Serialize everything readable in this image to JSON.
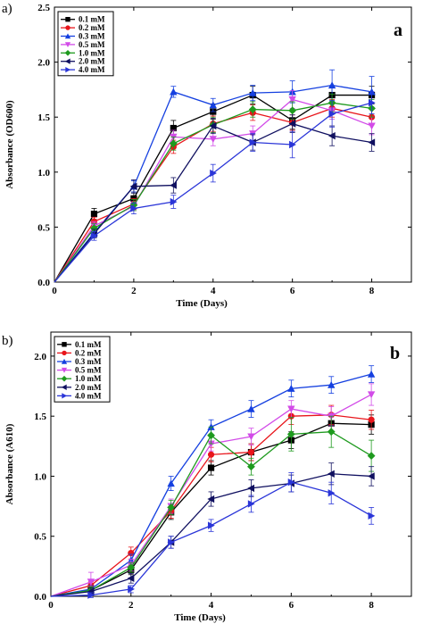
{
  "chart_data": [
    {
      "type": "line",
      "figure_label": "a)",
      "panel_letter": "a",
      "xlabel": "Time (Days)",
      "ylabel": "Absorbance (OD600)",
      "xlim": [
        0,
        9
      ],
      "ylim": [
        0,
        2.5
      ],
      "x_ticks": [
        "0",
        "2",
        "4",
        "6",
        "8"
      ],
      "y_ticks": [
        "0.0",
        "0.5",
        "1.0",
        "1.5",
        "2.0",
        "2.5"
      ],
      "legend_position": "top-left",
      "x": [
        0,
        1,
        2,
        3,
        4,
        5,
        6,
        7,
        8
      ],
      "series": [
        {
          "name": "0.1 mM",
          "color": "#000000",
          "marker": "square",
          "values": [
            0,
            0.62,
            0.76,
            1.4,
            1.55,
            1.7,
            1.47,
            1.7,
            1.7
          ],
          "errors": [
            0,
            0.05,
            0.05,
            0.07,
            0.07,
            0.08,
            0.08,
            0.08,
            0.08
          ]
        },
        {
          "name": "0.2 mM",
          "color": "#e8151b",
          "marker": "circle",
          "values": [
            0,
            0.55,
            0.71,
            1.23,
            1.44,
            1.54,
            1.45,
            1.58,
            1.5
          ],
          "errors": [
            0,
            0.04,
            0.05,
            0.06,
            0.07,
            0.07,
            0.07,
            0.08,
            0.07
          ]
        },
        {
          "name": "0.3 mM",
          "color": "#1540e0",
          "marker": "triangle-up",
          "values": [
            0,
            0.45,
            0.87,
            1.73,
            1.61,
            1.72,
            1.73,
            1.79,
            1.73
          ],
          "errors": [
            0,
            0.04,
            0.05,
            0.05,
            0.06,
            0.07,
            0.1,
            0.14,
            0.14
          ]
        },
        {
          "name": "0.5 mM",
          "color": "#d24be8",
          "marker": "triangle-down",
          "values": [
            0,
            0.51,
            0.69,
            1.32,
            1.3,
            1.35,
            1.66,
            1.56,
            1.42
          ],
          "errors": [
            0,
            0.04,
            0.04,
            0.06,
            0.06,
            0.07,
            0.08,
            0.08,
            0.08
          ]
        },
        {
          "name": "1.0 mM",
          "color": "#1e9a1e",
          "marker": "diamond",
          "values": [
            0,
            0.49,
            0.7,
            1.26,
            1.43,
            1.57,
            1.56,
            1.63,
            1.58
          ],
          "errors": [
            0,
            0.04,
            0.05,
            0.06,
            0.07,
            0.07,
            0.08,
            0.08,
            0.08
          ]
        },
        {
          "name": "2.0 mM",
          "color": "#101060",
          "marker": "triangle-left",
          "values": [
            0,
            0.44,
            0.87,
            0.88,
            1.42,
            1.27,
            1.44,
            1.33,
            1.27
          ],
          "errors": [
            0,
            0.04,
            0.06,
            0.07,
            0.07,
            0.07,
            0.08,
            0.09,
            0.08
          ]
        },
        {
          "name": "4.0 mM",
          "color": "#2a35d8",
          "marker": "triangle-right",
          "values": [
            0,
            0.42,
            0.67,
            0.73,
            0.99,
            1.27,
            1.25,
            1.53,
            1.63
          ],
          "errors": [
            0,
            0.04,
            0.05,
            0.06,
            0.08,
            0.08,
            0.12,
            0.12,
            0.1
          ]
        }
      ]
    },
    {
      "type": "line",
      "figure_label": "b)",
      "panel_letter": "b",
      "xlabel": "Time (Days)",
      "ylabel": "Absorbance (A610)",
      "xlim": [
        0,
        9
      ],
      "ylim": [
        0,
        2.2
      ],
      "x_ticks": [
        "0",
        "2",
        "4",
        "6",
        "8"
      ],
      "y_ticks": [
        "0.0",
        "0.5",
        "1.0",
        "1.5",
        "2.0"
      ],
      "legend_position": "top-left",
      "x": [
        0,
        1,
        2,
        3,
        4,
        5,
        6,
        7,
        8
      ],
      "series": [
        {
          "name": "0.1 mM",
          "color": "#000000",
          "marker": "square",
          "values": [
            0,
            0.05,
            0.22,
            0.7,
            1.07,
            1.2,
            1.3,
            1.44,
            1.43
          ],
          "errors": [
            0,
            0.03,
            0.04,
            0.06,
            0.06,
            0.07,
            0.07,
            0.07,
            0.08
          ]
        },
        {
          "name": "0.2 mM",
          "color": "#e8151b",
          "marker": "circle",
          "values": [
            0,
            0.09,
            0.36,
            0.71,
            1.18,
            1.2,
            1.5,
            1.51,
            1.47
          ],
          "errors": [
            0,
            0.03,
            0.05,
            0.06,
            0.06,
            0.07,
            0.07,
            0.08,
            0.08
          ]
        },
        {
          "name": "0.3 mM",
          "color": "#1540e0",
          "marker": "triangle-up",
          "values": [
            0,
            0.06,
            0.3,
            0.94,
            1.41,
            1.56,
            1.73,
            1.76,
            1.85
          ],
          "errors": [
            0,
            0.03,
            0.05,
            0.06,
            0.06,
            0.07,
            0.07,
            0.07,
            0.07
          ]
        },
        {
          "name": "0.5 mM",
          "color": "#d24be8",
          "marker": "triangle-down",
          "values": [
            0,
            0.12,
            0.26,
            0.75,
            1.27,
            1.33,
            1.56,
            1.5,
            1.68
          ],
          "errors": [
            0,
            0.08,
            0.05,
            0.06,
            0.06,
            0.07,
            0.07,
            0.08,
            0.09
          ]
        },
        {
          "name": "1.0 mM",
          "color": "#1e9a1e",
          "marker": "diamond",
          "values": [
            0,
            0.05,
            0.24,
            0.74,
            1.34,
            1.08,
            1.35,
            1.37,
            1.17
          ],
          "errors": [
            0,
            0.03,
            0.04,
            0.06,
            0.07,
            0.07,
            0.14,
            0.13,
            0.13
          ]
        },
        {
          "name": "2.0 mM",
          "color": "#101060",
          "marker": "triangle-left",
          "values": [
            0,
            0.04,
            0.15,
            0.45,
            0.81,
            0.9,
            0.94,
            1.02,
            1.0
          ],
          "errors": [
            0,
            0.03,
            0.04,
            0.05,
            0.06,
            0.07,
            0.07,
            0.09,
            0.08
          ]
        },
        {
          "name": "4.0 mM",
          "color": "#2a35d8",
          "marker": "triangle-right",
          "values": [
            0,
            0.01,
            0.06,
            0.45,
            0.59,
            0.77,
            0.95,
            0.86,
            0.67
          ],
          "errors": [
            0,
            0.02,
            0.03,
            0.05,
            0.05,
            0.07,
            0.08,
            0.09,
            0.07
          ]
        }
      ]
    }
  ]
}
